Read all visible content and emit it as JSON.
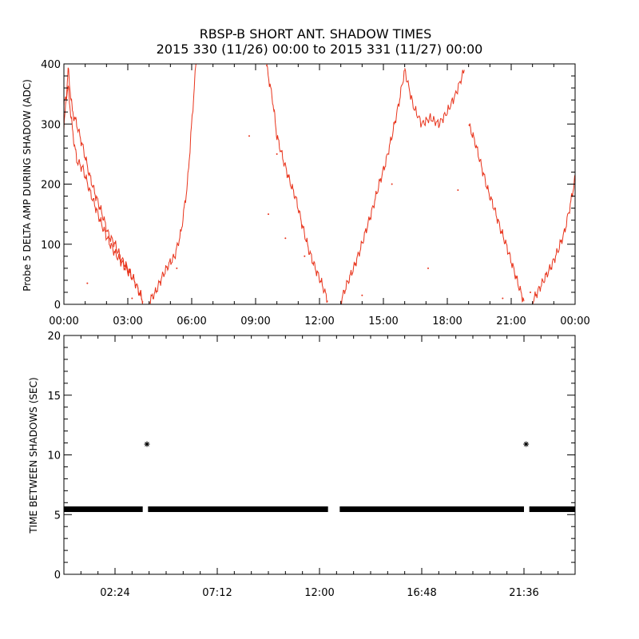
{
  "title": {
    "line1": "RBSP-B SHORT ANT. SHADOW TIMES",
    "line2": "2015 330 (11/26) 00:00 to 2015 331 (11/27) 00:00"
  },
  "colors": {
    "trace": "#e8341c",
    "marker": "#000000",
    "axis": "#000000"
  },
  "chart_data": [
    {
      "type": "scatter",
      "name": "delta-amp-panel",
      "ylabel": "Probe 5 DELTA AMP DURING SHADOW (ADC)",
      "xlabel": "",
      "xlim_hours": [
        0,
        24
      ],
      "ylim": [
        0,
        400
      ],
      "x_tick_hours": [
        0,
        3,
        6,
        9,
        12,
        15,
        18,
        21,
        24
      ],
      "x_tick_labels": [
        "00:00",
        "03:00",
        "06:00",
        "09:00",
        "12:00",
        "15:00",
        "18:00",
        "21:00",
        "00:00"
      ],
      "y_ticks": [
        0,
        100,
        200,
        300,
        400
      ],
      "y_tick_labels": [
        "0",
        "100",
        "200",
        "300",
        "400"
      ],
      "series": [
        {
          "name": "delta-amp-upper",
          "x_hours": [
            0.0,
            0.2,
            0.4,
            0.6,
            0.9,
            1.2,
            1.5,
            1.8,
            2.1,
            2.4,
            2.7,
            3.0,
            3.3,
            3.6,
            3.7
          ],
          "values": [
            290,
            390,
            320,
            300,
            260,
            215,
            180,
            150,
            115,
            100,
            75,
            60,
            40,
            15,
            5
          ]
        },
        {
          "name": "delta-amp-lower",
          "x_hours": [
            0.0,
            0.2,
            0.4,
            0.6,
            0.9,
            1.2,
            1.5,
            1.8,
            2.1,
            2.4,
            2.7,
            3.0,
            3.3,
            3.6,
            3.7
          ],
          "values": [
            330,
            360,
            290,
            240,
            225,
            190,
            160,
            130,
            105,
            85,
            70,
            55,
            40,
            15,
            5
          ]
        },
        {
          "name": "delta-amp-rise-1",
          "x_hours": [
            4.0,
            4.3,
            4.6,
            4.9,
            5.2,
            5.5,
            5.8,
            6.0,
            6.2
          ],
          "values": [
            5,
            20,
            45,
            65,
            80,
            120,
            200,
            300,
            400
          ]
        },
        {
          "name": "delta-amp-fall-2",
          "x_hours": [
            9.5,
            9.8,
            10.0,
            10.3,
            10.6,
            10.9,
            11.2,
            11.5,
            11.8,
            12.1,
            12.4
          ],
          "values": [
            400,
            340,
            280,
            240,
            205,
            175,
            130,
            90,
            60,
            35,
            5
          ]
        },
        {
          "name": "delta-amp-rise-2",
          "x_hours": [
            13.0,
            13.3,
            13.6,
            13.9,
            14.2,
            14.5,
            14.8,
            15.1,
            15.4,
            15.7,
            16.0
          ],
          "values": [
            5,
            35,
            60,
            90,
            125,
            160,
            200,
            235,
            280,
            330,
            390
          ]
        },
        {
          "name": "delta-amp-peak",
          "x_hours": [
            16.0,
            16.4,
            16.8,
            17.2,
            17.6,
            18.0,
            18.4,
            18.8
          ],
          "values": [
            390,
            330,
            300,
            310,
            300,
            320,
            350,
            390
          ]
        },
        {
          "name": "delta-amp-fall-3",
          "x_hours": [
            19.0,
            19.3,
            19.6,
            19.9,
            20.2,
            20.5,
            20.8,
            21.1,
            21.4,
            21.6
          ],
          "values": [
            300,
            270,
            230,
            190,
            160,
            125,
            95,
            60,
            25,
            5
          ]
        },
        {
          "name": "delta-amp-rise-3",
          "x_hours": [
            22.0,
            22.3,
            22.6,
            22.9,
            23.2,
            23.5,
            23.8,
            24.0
          ],
          "values": [
            5,
            25,
            45,
            65,
            90,
            120,
            170,
            210
          ]
        }
      ],
      "scatter_points": {
        "x_hours": [
          1.1,
          3.2,
          5.3,
          8.7,
          9.6,
          10.0,
          10.4,
          11.3,
          14.0,
          15.4,
          17.1,
          18.5,
          20.6,
          21.9
        ],
        "values": [
          35,
          10,
          60,
          280,
          150,
          250,
          110,
          80,
          15,
          200,
          60,
          190,
          10,
          20
        ]
      }
    },
    {
      "type": "scatter",
      "name": "shadow-interval-panel",
      "ylabel": "TIME BETWEEN SHADOWS (SEC)",
      "xlabel": "",
      "xlim_hours": [
        0,
        24
      ],
      "ylim": [
        0,
        20
      ],
      "x_tick_hours": [
        2.4,
        7.2,
        12.0,
        16.8,
        21.6
      ],
      "x_tick_labels": [
        "02:24",
        "07:12",
        "12:00",
        "16:48",
        "21:36"
      ],
      "y_ticks": [
        0,
        5,
        10,
        15,
        20
      ],
      "y_tick_labels": [
        "0",
        "5",
        "10",
        "15",
        "20"
      ],
      "nominal_interval_sec": 5.45,
      "baseline_segments_hours": [
        [
          0.0,
          3.7
        ],
        [
          3.95,
          12.4
        ],
        [
          12.95,
          21.6
        ],
        [
          21.85,
          24.0
        ]
      ],
      "outliers": {
        "x_hours": [
          3.9,
          21.7
        ],
        "values": [
          10.9,
          10.9
        ]
      }
    }
  ]
}
